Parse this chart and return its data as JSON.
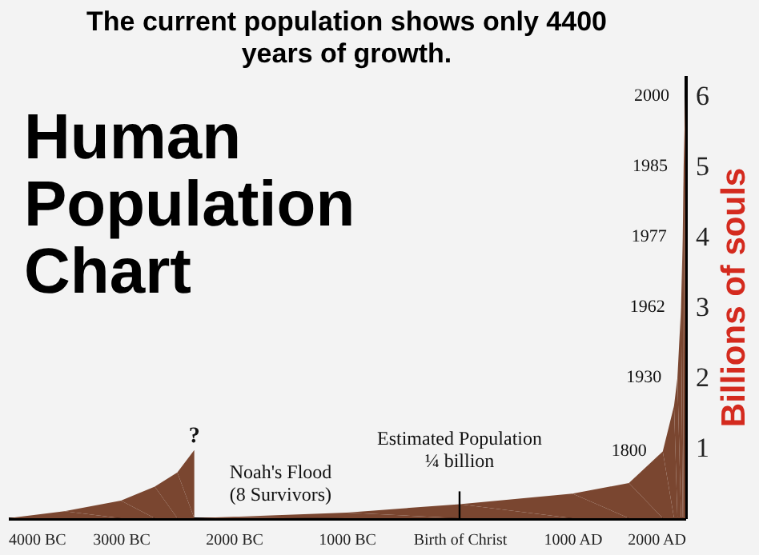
{
  "chart_data": {
    "type": "area",
    "title": "The current population shows only 4400 years of growth.",
    "ylabel": "Billions of souls",
    "x": [
      -4000,
      -3500,
      -3000,
      -2700,
      -2500,
      -2350,
      -2350,
      -2000,
      -1000,
      0,
      1000,
      1500,
      1800,
      1900,
      1930,
      1962,
      1977,
      1985,
      2000
    ],
    "values": [
      0,
      0.1,
      0.25,
      0.45,
      0.65,
      0.97,
      0,
      0.02,
      0.08,
      0.2,
      0.35,
      0.5,
      0.95,
      1.6,
      2,
      3,
      4,
      5,
      6
    ],
    "color": "#7a4630",
    "xlim": [
      -4000,
      2000
    ],
    "xticks": [
      {
        "value": -4000,
        "label": "4000 BC"
      },
      {
        "value": -3000,
        "label": "3000 BC"
      },
      {
        "value": -2000,
        "label": "2000 BC"
      },
      {
        "value": -1000,
        "label": "1000 BC"
      },
      {
        "value": 0,
        "label": "Birth of Christ"
      },
      {
        "value": 1000,
        "label": "1000 AD"
      },
      {
        "value": 2000,
        "label": "2000 AD"
      }
    ],
    "ylim": [
      0,
      6.3
    ],
    "yticks": [
      1,
      2,
      3,
      4,
      5,
      6
    ],
    "grid": false,
    "annotations": [
      "Human\nPopulation\nChart",
      {
        "text": "?",
        "x": -2350,
        "y": 0.97
      },
      {
        "text": "Noah's Flood\n(8 Survivors)",
        "x": -2350,
        "y": 0
      },
      {
        "text": "Estimated Population\n¼ billion",
        "x": 0,
        "y": 0.2
      },
      {
        "text": "1800",
        "x": 1800,
        "y": 0.95
      },
      {
        "text": "1930",
        "x": 1930,
        "y": 2
      },
      {
        "text": "1962",
        "x": 1962,
        "y": 3
      },
      {
        "text": "1977",
        "x": 1977,
        "y": 4
      },
      {
        "text": "1985",
        "x": 1985,
        "y": 5
      },
      {
        "text": "2000",
        "x": 2000,
        "y": 6
      }
    ]
  }
}
